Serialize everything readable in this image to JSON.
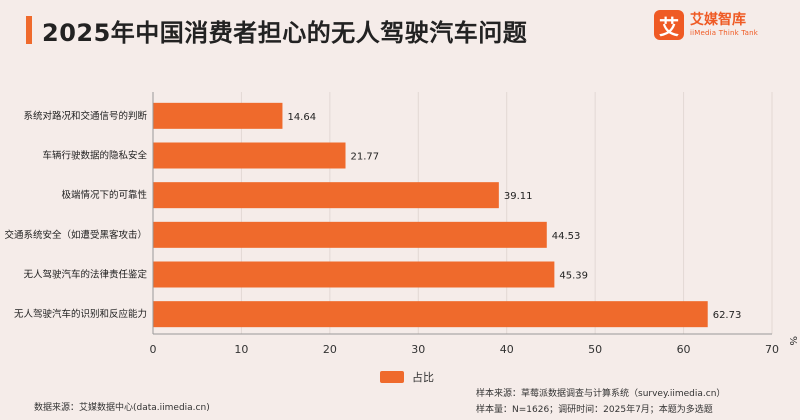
{
  "header": {
    "title": "2025年中国消费者担心的无人驾驶汽车问题",
    "logo_char": "艾",
    "logo_name": "艾媒智库",
    "logo_sub": "iiMedia Think Tank",
    "brand_color": "#ef5a24"
  },
  "chart_data": {
    "type": "bar",
    "orientation": "horizontal",
    "title": "2025年中国消费者担心的无人驾驶汽车问题",
    "categories": [
      "系统对路况和交通信号的判断",
      "车辆行驶数据的隐私安全",
      "极端情况下的可靠性",
      "交通系统安全（如遭受黑客攻击）",
      "无人驾驶汽车的法律责任鉴定",
      "无人驾驶汽车的识别和反应能力"
    ],
    "series": [
      {
        "name": "占比",
        "values": [
          14.64,
          21.77,
          39.11,
          44.53,
          45.39,
          62.73
        ],
        "color": "#ef6a2c"
      }
    ],
    "value_labels": [
      "14.64",
      "21.77",
      "39.11",
      "44.53",
      "45.39",
      "62.73"
    ],
    "xlim": [
      0,
      70
    ],
    "x_ticks": [
      "0",
      "10",
      "20",
      "30",
      "40",
      "50",
      "60",
      "70"
    ],
    "unit_label": "%",
    "grid": true,
    "legend_position": "bottom"
  },
  "footer": {
    "data_source": "数据来源：艾媒数据中心(data.iimedia.cn)",
    "sample_source": "样本来源：草莓派数据调查与计算系统（survey.iimedia.cn）",
    "sample_info": "样本量：N=1626；调研时间：2025年7月；本题为多选题"
  }
}
